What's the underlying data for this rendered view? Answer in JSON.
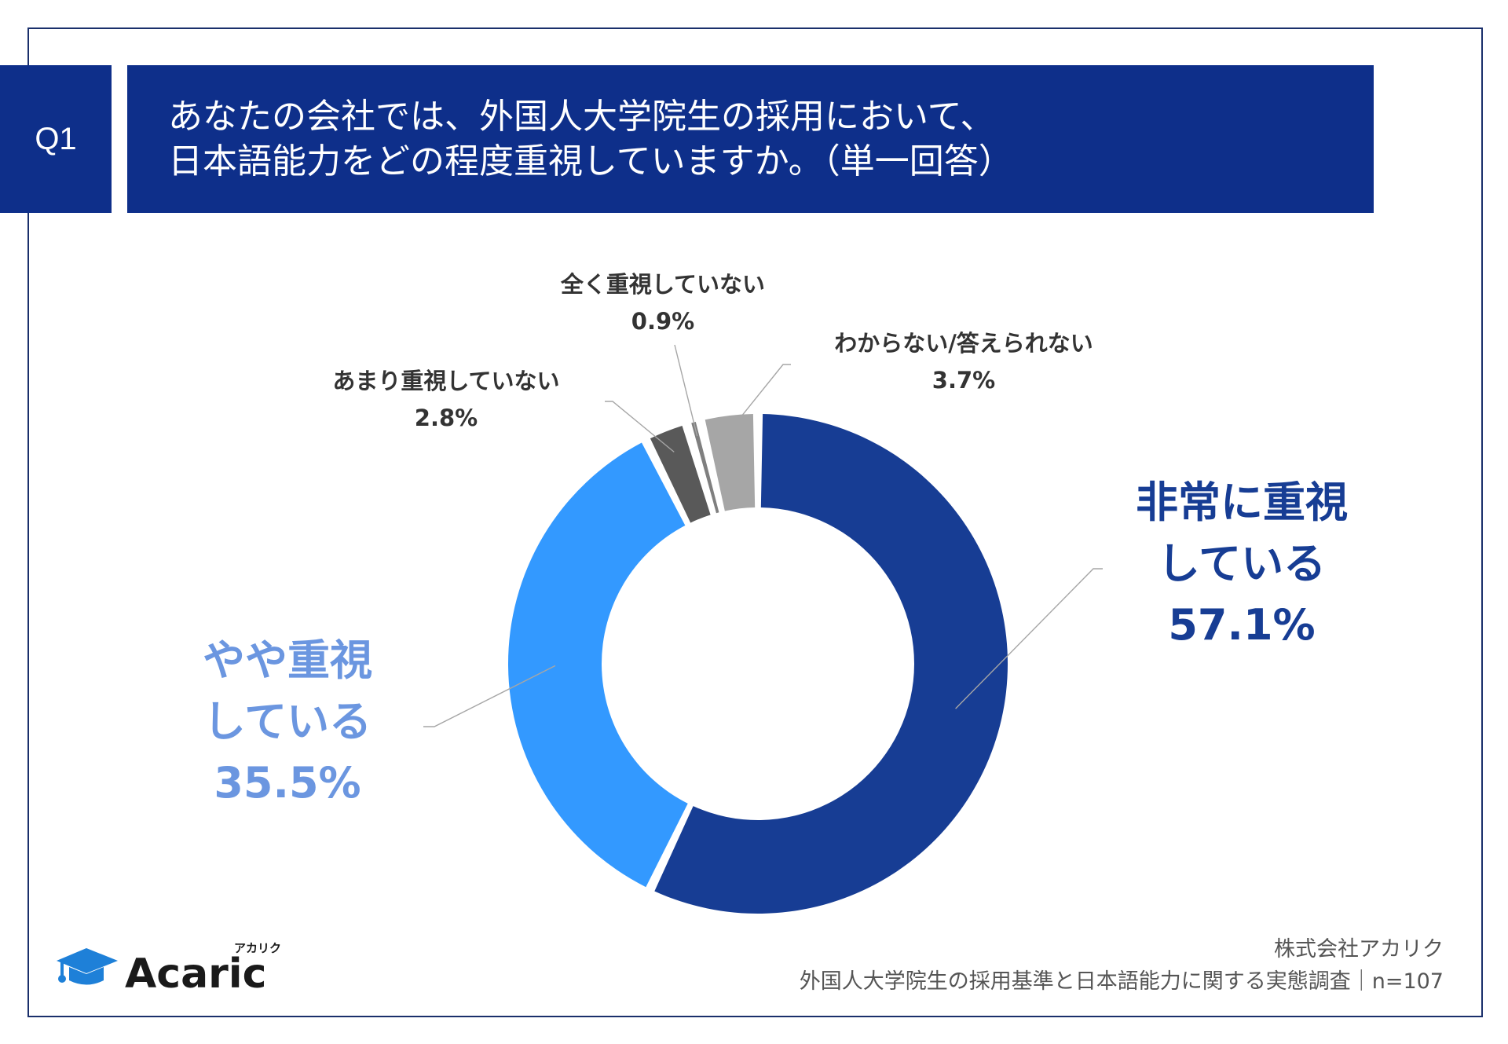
{
  "question": {
    "number": "Q1",
    "title_lines": [
      "あなたの会社では、外国人大学院生の採用において、",
      "日本語能力をどの程度重視していますか。（単一回答）"
    ]
  },
  "chart_data": {
    "type": "pie",
    "title": "",
    "legend": "none",
    "series": [
      {
        "name": "Q1",
        "values": [
          57.1,
          35.5,
          2.8,
          0.9,
          3.7
        ]
      }
    ],
    "categories": [
      "非常に重視している",
      "やや重視している",
      "あまり重視していない",
      "全く重視していない",
      "わからない/答えられない"
    ],
    "slices": [
      {
        "label_lines": [
          "非常に重視",
          "している"
        ],
        "value": 57.1,
        "value_label": "57.1%",
        "color": "#173d94"
      },
      {
        "label_lines": [
          "やや重視",
          "している"
        ],
        "value": 35.5,
        "value_label": "35.5%",
        "color": "#3399ff"
      },
      {
        "label_lines": [
          "あまり重視していない"
        ],
        "value": 2.8,
        "value_label": "2.8%",
        "color": "#595959"
      },
      {
        "label_lines": [
          "全く重視していない"
        ],
        "value": 0.9,
        "value_label": "0.9%",
        "color": "#7f7f7f"
      },
      {
        "label_lines": [
          "わからない/答えられない"
        ],
        "value": 3.7,
        "value_label": "3.7%",
        "color": "#a6a6a6"
      }
    ],
    "label_colors": {
      "primary": "#173d94",
      "secondary": "#6b96e0"
    }
  },
  "logo": {
    "brand": "Acaric",
    "katakana": "アカリク",
    "icon": "graduation-cap-icon",
    "color": "#1e80d8"
  },
  "footer": {
    "company": "株式会社アカリク",
    "survey": "外国人大学院生の採用基準と日本語能力に関する実態調査｜n=107"
  }
}
